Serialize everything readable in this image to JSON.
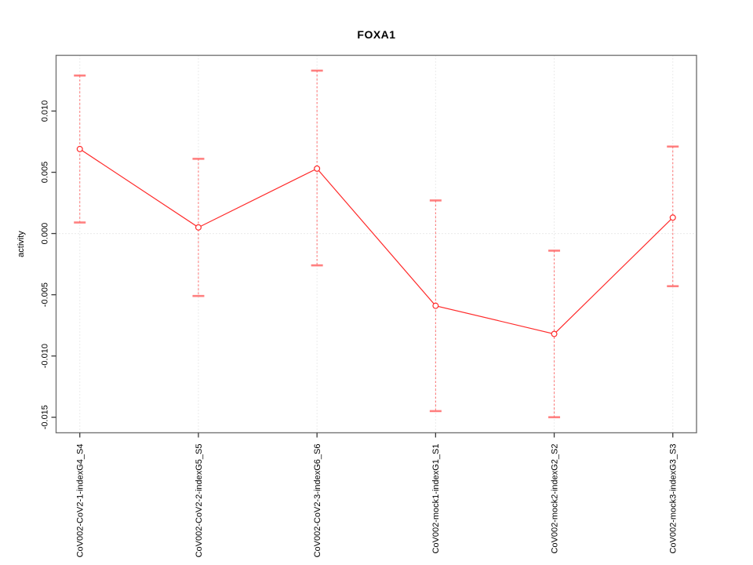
{
  "chart_data": {
    "type": "line",
    "title": "FOXA1",
    "xlabel": "",
    "ylabel": "activity",
    "legend": "none",
    "grid": "dotted vertical line at each category; dotted horizontal line at y=0",
    "categories": [
      "CoV002-CoV2-1-indexG4_S4",
      "CoV002-CoV2-2-indexG5_S5",
      "CoV002-CoV2-3-indexG6_S6",
      "CoV002-mock1-indexG1_S1",
      "CoV002-mock2-indexG2_S2",
      "CoV002-mock3-indexG3_S3"
    ],
    "series": [
      {
        "name": "activity",
        "means": [
          0.0069,
          0.0005,
          0.0053,
          -0.0059,
          -0.0082,
          0.0013
        ],
        "ci_low": [
          0.0009,
          -0.0051,
          -0.0026,
          -0.0145,
          -0.015,
          -0.0043
        ],
        "ci_high": [
          0.0129,
          0.0061,
          0.0133,
          0.0027,
          -0.0014,
          0.0071
        ]
      }
    ],
    "yticks": [
      0.01,
      0.005,
      0.0,
      -0.005,
      -0.01,
      -0.015
    ],
    "ytick_labels": [
      "0.010",
      "0.005",
      "0.000",
      "-0.005",
      "-0.010",
      "-0.015"
    ],
    "ylim": [
      -0.01627,
      0.01455
    ],
    "colors": {
      "series": "#ff2a2a",
      "whisker": "#ff4d4d",
      "cap": "#ff6b6b",
      "grid": "#d6d6d6",
      "box": "#757575",
      "tick": "#3a3a3a",
      "text": "#000000"
    }
  }
}
